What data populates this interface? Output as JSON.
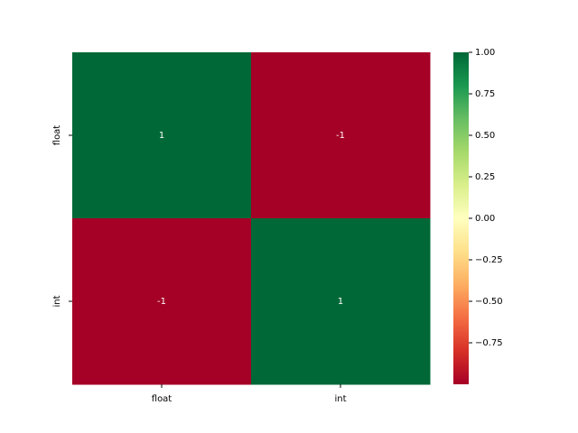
{
  "chart_data": {
    "type": "heatmap",
    "x_categories": [
      "float",
      "int"
    ],
    "y_categories": [
      "float",
      "int"
    ],
    "values": [
      [
        1,
        -1
      ],
      [
        -1,
        1
      ]
    ],
    "colormap": "RdYlGn",
    "clim": [
      -1,
      1
    ],
    "cticks": [
      {
        "value": 1,
        "label": "1.00"
      },
      {
        "value": 0.75,
        "label": "0.75"
      },
      {
        "value": 0.5,
        "label": "0.50"
      },
      {
        "value": 0.25,
        "label": "0.25"
      },
      {
        "value": 0,
        "label": "0.00"
      },
      {
        "value": -0.25,
        "label": "−0.25"
      },
      {
        "value": -0.5,
        "label": "−0.50"
      },
      {
        "value": -0.75,
        "label": "−0.75"
      }
    ]
  }
}
